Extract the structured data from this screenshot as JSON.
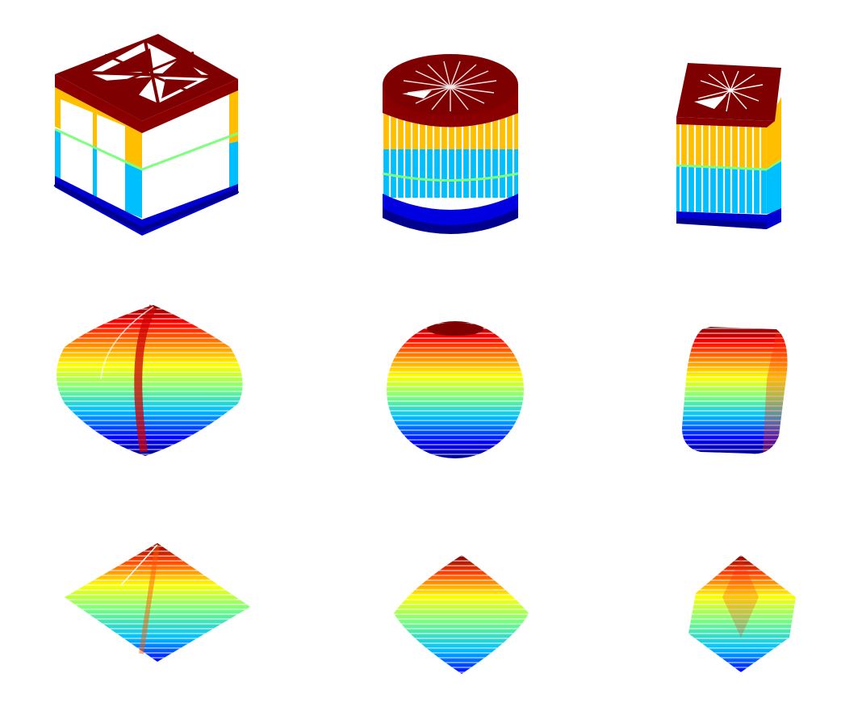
{
  "figure": {
    "description_visible_text": "",
    "colormap": [
      "#00008f",
      "#0000ff",
      "#00bfff",
      "#7fff7f",
      "#ffbf00",
      "#ff0000",
      "#7f0000"
    ],
    "background": "#ffffff",
    "grid_rows": 3,
    "grid_cols": 3,
    "shapes": [
      {
        "id": "rounded-cube",
        "row": 0,
        "col": 0,
        "style": "banded"
      },
      {
        "id": "cylinder",
        "row": 0,
        "col": 1,
        "style": "banded"
      },
      {
        "id": "tilted-square-prism",
        "row": 0,
        "col": 2,
        "style": "banded"
      },
      {
        "id": "pillow",
        "row": 1,
        "col": 0,
        "style": "gradient"
      },
      {
        "id": "sphere",
        "row": 1,
        "col": 1,
        "style": "gradient"
      },
      {
        "id": "rounded-box",
        "row": 1,
        "col": 2,
        "style": "gradient"
      },
      {
        "id": "flat-pyramid",
        "row": 2,
        "col": 0,
        "style": "gradient"
      },
      {
        "id": "round-bicone",
        "row": 2,
        "col": 1,
        "style": "gradient"
      },
      {
        "id": "octahedron",
        "row": 2,
        "col": 2,
        "style": "gradient"
      }
    ]
  }
}
